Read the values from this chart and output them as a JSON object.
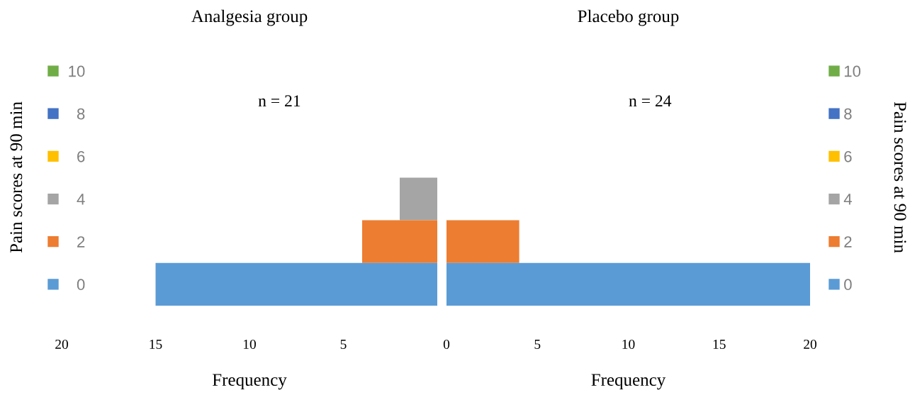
{
  "chart_data": [
    {
      "type": "bar",
      "orientation": "horizontal",
      "title": "Analgesia group",
      "xlabel": "Frequency",
      "ylabel": "Pain scores at 90 min",
      "annotations": [
        "n = 21"
      ],
      "xlim": [
        20,
        0
      ],
      "xticks": [
        20,
        15,
        10,
        5
      ],
      "categories": [
        "10",
        "8",
        "6",
        "4",
        "2",
        "0"
      ],
      "values": [
        0,
        0,
        0,
        2,
        4,
        15
      ],
      "colors": [
        "#70ad47",
        "#4472c4",
        "#ffc000",
        "#a5a5a5",
        "#ed7d31",
        "#5b9bd5"
      ]
    },
    {
      "type": "bar",
      "orientation": "horizontal",
      "title": "Placebo group",
      "xlabel": "Frequency",
      "ylabel": "Pain scores at 90 min",
      "annotations": [
        "n = 24"
      ],
      "xlim": [
        0,
        20
      ],
      "xticks": [
        0,
        5,
        10,
        15,
        20
      ],
      "categories": [
        "10",
        "8",
        "6",
        "4",
        "2",
        "0"
      ],
      "values": [
        0,
        0,
        0,
        0,
        4,
        20
      ],
      "colors": [
        "#70ad47",
        "#4472c4",
        "#ffc000",
        "#a5a5a5",
        "#ed7d31",
        "#5b9bd5"
      ]
    }
  ]
}
